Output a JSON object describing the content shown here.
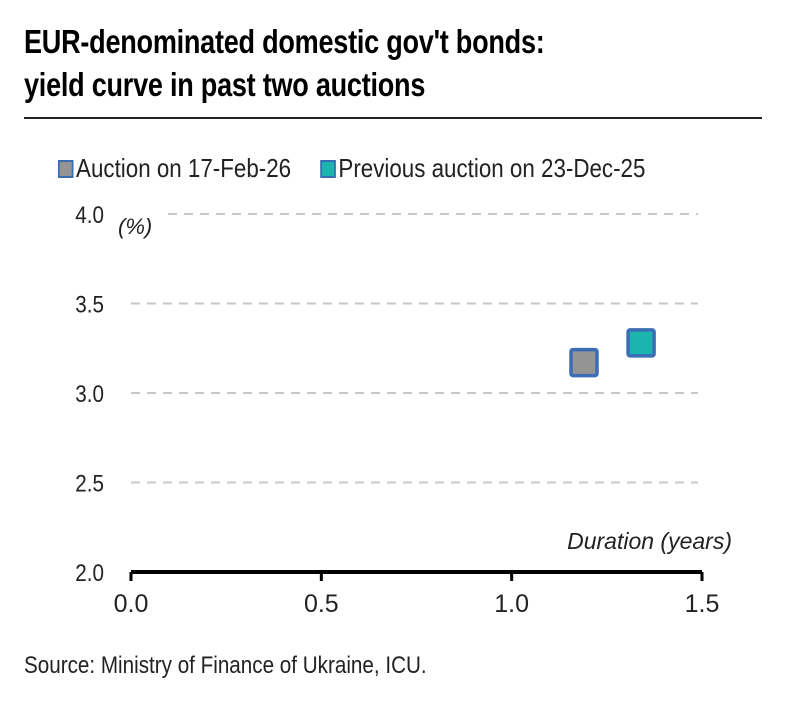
{
  "chart_data": {
    "type": "scatter",
    "title": "EUR-denominated domestic gov't bonds: yield curve in past two auctions",
    "title_lines": [
      "EUR-denominated domestic gov't bonds:",
      "yield curve in past two auctions"
    ],
    "xlabel": "Duration (years)",
    "ylabel": "(%)",
    "xlim": [
      0.0,
      1.5
    ],
    "ylim": [
      2.0,
      4.0
    ],
    "xticks": [
      "0.0",
      "0.5",
      "1.0",
      "1.5"
    ],
    "xtick_values": [
      0.0,
      0.5,
      1.0,
      1.5
    ],
    "yticks": [
      "4.0",
      "3.5",
      "3.0",
      "2.5",
      "2.0"
    ],
    "ytick_values": [
      4.0,
      3.5,
      3.0,
      2.5,
      2.0
    ],
    "grid": "horizontal dashed",
    "legend_position": "top",
    "series": [
      {
        "name": "Auction on 17-Feb-26",
        "color": "#949494",
        "edge": "#3a6db5",
        "points": [
          {
            "x": 1.19,
            "y": 3.17
          }
        ]
      },
      {
        "name": "Previous auction on 23-Dec-25",
        "color": "#1ab5ad",
        "edge": "#3a6db5",
        "points": [
          {
            "x": 1.34,
            "y": 3.28
          }
        ]
      }
    ],
    "source": "Source: Ministry of Finance of Ukraine, ICU."
  }
}
